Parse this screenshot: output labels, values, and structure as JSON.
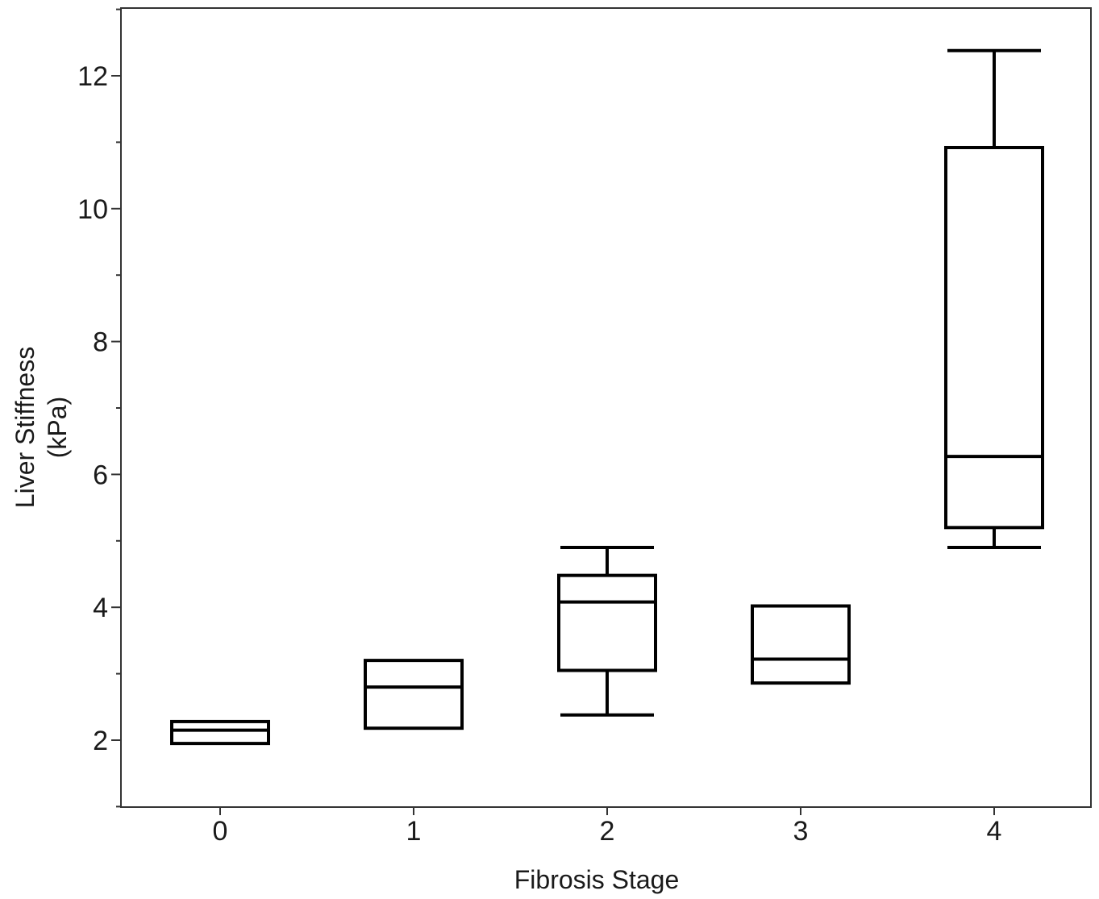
{
  "chart_data": {
    "type": "box",
    "title": "",
    "xlabel": "Fibrosis Stage",
    "ylabel_lines": [
      "Liver Stiffness",
      "(kPa)"
    ],
    "categories": [
      "0",
      "1",
      "2",
      "3",
      "4"
    ],
    "ylim": [
      1,
      13
    ],
    "yticks": [
      2,
      4,
      6,
      8,
      10,
      12
    ],
    "grid": false,
    "boxes": [
      {
        "category": "0",
        "whisker_low": null,
        "q1": 1.95,
        "median": 2.15,
        "q3": 2.28,
        "whisker_high": null
      },
      {
        "category": "1",
        "whisker_low": null,
        "q1": 2.18,
        "median": 2.8,
        "q3": 3.2,
        "whisker_high": null
      },
      {
        "category": "2",
        "whisker_low": 2.38,
        "q1": 3.05,
        "median": 4.08,
        "q3": 4.48,
        "whisker_high": 4.9
      },
      {
        "category": "3",
        "whisker_low": null,
        "q1": 2.86,
        "median": 3.22,
        "q3": 4.02,
        "whisker_high": null
      },
      {
        "category": "4",
        "whisker_low": 4.9,
        "q1": 5.2,
        "median": 6.27,
        "q3": 10.92,
        "whisker_high": 12.38
      }
    ]
  }
}
